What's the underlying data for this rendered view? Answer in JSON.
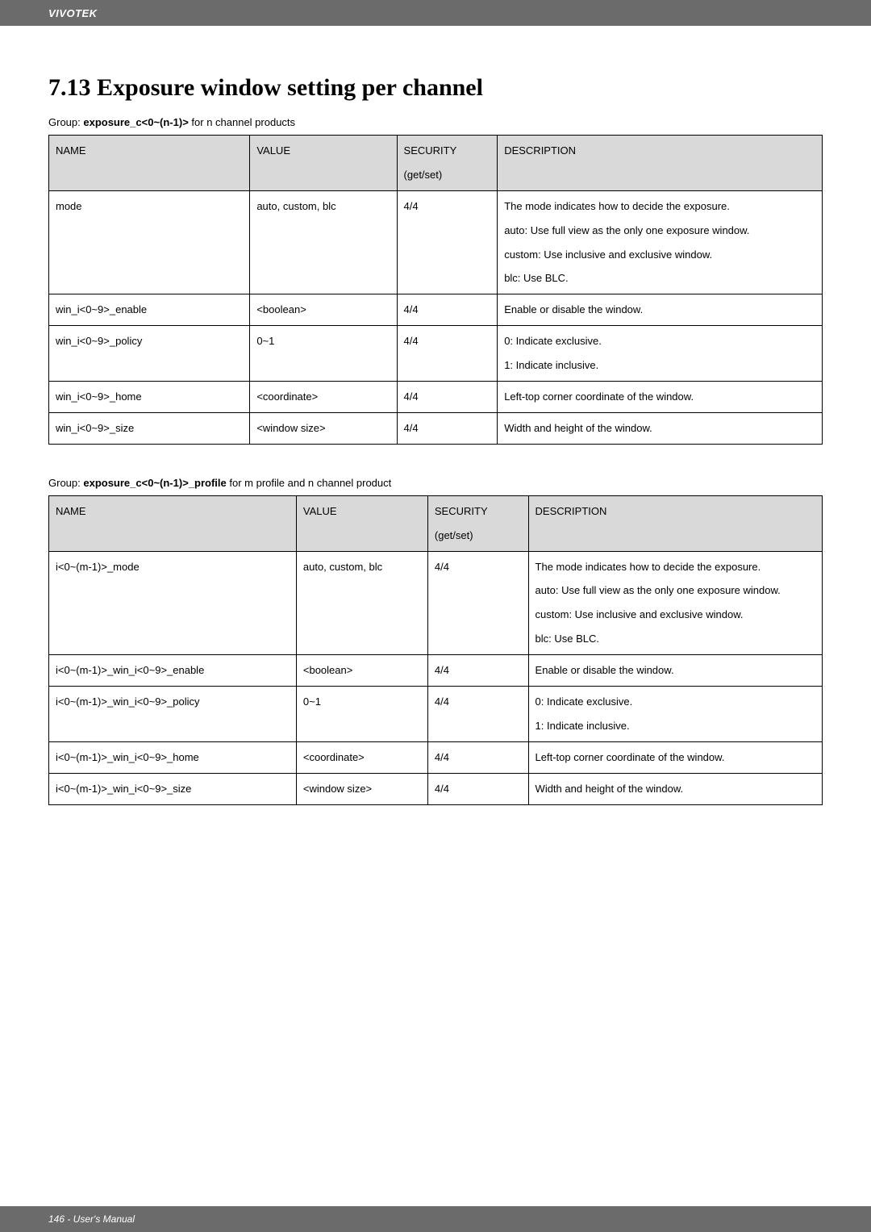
{
  "header": {
    "brand": "VIVOTEK"
  },
  "title": "7.13 Exposure window setting per channel",
  "group1_prefix": "Group: ",
  "group1_bold": "exposure_c<0~(n-1)>",
  "group1_suffix": " for n channel products",
  "group2_prefix": "Group: ",
  "group2_bold": "exposure_c<0~(n-1)>_profile",
  "group2_suffix": " for m profile and n channel product",
  "table_headers": {
    "name": "NAME",
    "value": "VALUE",
    "security": "SECURITY",
    "security_sub": "(get/set)",
    "description": "DESCRIPTION"
  },
  "table1": {
    "rows": [
      {
        "name": "mode",
        "value": "auto, custom, blc",
        "security": "4/4",
        "description": "The mode indicates how to decide the exposure.\nauto: Use full view as the only one exposure window.\ncustom: Use inclusive and exclusive window.\nblc: Use BLC."
      },
      {
        "name": "win_i<0~9>_enable",
        "value": "<boolean>",
        "security": "4/4",
        "description": "Enable or disable the window."
      },
      {
        "name": "win_i<0~9>_policy",
        "value": "0~1",
        "security": "4/4",
        "description": "0: Indicate exclusive.\n1: Indicate inclusive."
      },
      {
        "name": "win_i<0~9>_home",
        "value": "<coordinate>",
        "security": "4/4",
        "description": "Left-top corner coordinate of the window."
      },
      {
        "name": "win_i<0~9>_size",
        "value": "<window size>",
        "security": "4/4",
        "description": "Width and height of the window."
      }
    ]
  },
  "table2": {
    "rows": [
      {
        "name": "i<0~(m-1)>_mode",
        "value": "auto, custom, blc",
        "security": "4/4",
        "description": "The mode indicates how to decide the exposure.\nauto: Use full view as the only one exposure window.\ncustom: Use inclusive and exclusive window.\nblc: Use BLC."
      },
      {
        "name": "i<0~(m-1)>_win_i<0~9>_enable",
        "value": "<boolean>",
        "security": "4/4",
        "description": "Enable or disable the window."
      },
      {
        "name": "i<0~(m-1)>_win_i<0~9>_policy",
        "value": "0~1",
        "security": "4/4",
        "description": "0: Indicate exclusive.\n1: Indicate inclusive."
      },
      {
        "name": "i<0~(m-1)>_win_i<0~9>_home",
        "value": "<coordinate>",
        "security": "4/4",
        "description": "Left-top corner coordinate of the window."
      },
      {
        "name": "i<0~(m-1)>_win_i<0~9>_size",
        "value": "<window size>",
        "security": "4/4",
        "description": "Width and height of the window."
      }
    ]
  },
  "footer": {
    "text": "146 - User's Manual"
  }
}
